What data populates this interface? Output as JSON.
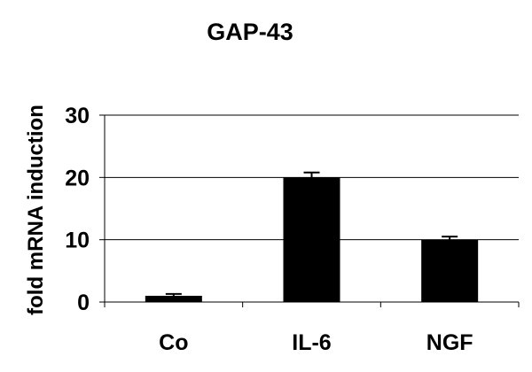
{
  "chart_data": {
    "type": "bar",
    "title": "GAP-43",
    "xlabel": "",
    "ylabel": "fold mRNA induction",
    "categories": [
      "Co",
      "IL-6",
      "NGF"
    ],
    "values": [
      1,
      20,
      10
    ],
    "errors": [
      0.3,
      0.8,
      0.5
    ],
    "ylim": [
      0,
      30
    ],
    "yticks": [
      0,
      10,
      20,
      30
    ],
    "grid": "horizontal",
    "legend": "none",
    "bar_color": "#000000"
  }
}
